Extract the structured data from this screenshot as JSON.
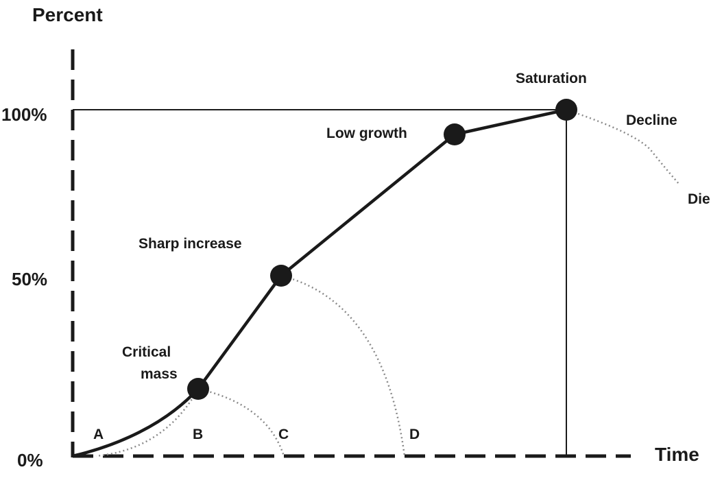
{
  "diagram": {
    "y_axis_title": "Percent",
    "x_axis_title": "Time",
    "y_ticks": {
      "top": "100%",
      "mid": "50%",
      "bottom": "0%"
    },
    "stages": {
      "critical_mass_line1": "Critical",
      "critical_mass_line2": "mass",
      "sharp_increase": "Sharp increase",
      "low_growth": "Low growth",
      "saturation": "Saturation",
      "decline": "Decline",
      "die": "Die"
    },
    "markers": {
      "a": "A",
      "b": "B",
      "c": "C",
      "d": "D"
    },
    "colors": {
      "ink": "#1a1a1a",
      "dotted": "#8a8a8a"
    }
  }
}
